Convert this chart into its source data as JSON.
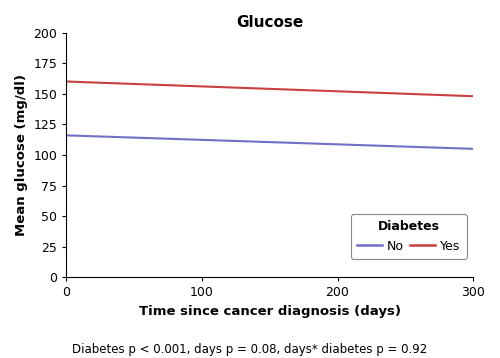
{
  "title": "Glucose",
  "xlabel": "Time since cancer diagnosis (days)",
  "ylabel": "Mean glucose (mg/dl)",
  "footnote": "Diabetes p < 0.001, days p = 0.08, days* diabetes p = 0.92",
  "xlim": [
    0,
    300
  ],
  "ylim": [
    0,
    200
  ],
  "xticks": [
    0,
    100,
    200,
    300
  ],
  "yticks": [
    0,
    25,
    50,
    75,
    100,
    125,
    150,
    175,
    200
  ],
  "line_no": {
    "x": [
      0,
      300
    ],
    "y": [
      116,
      105
    ],
    "color": "#7070c8",
    "linewidth": 1.5,
    "label": "No"
  },
  "line_yes": {
    "x": [
      0,
      300
    ],
    "y": [
      160,
      148
    ],
    "color": "#c84040",
    "linewidth": 1.5,
    "label": "Yes"
  },
  "legend_title": "Diabetes",
  "background_color": "#ffffff",
  "title_fontsize": 11,
  "label_fontsize": 9.5,
  "tick_fontsize": 9,
  "footnote_fontsize": 8.5,
  "legend_fontsize": 9
}
